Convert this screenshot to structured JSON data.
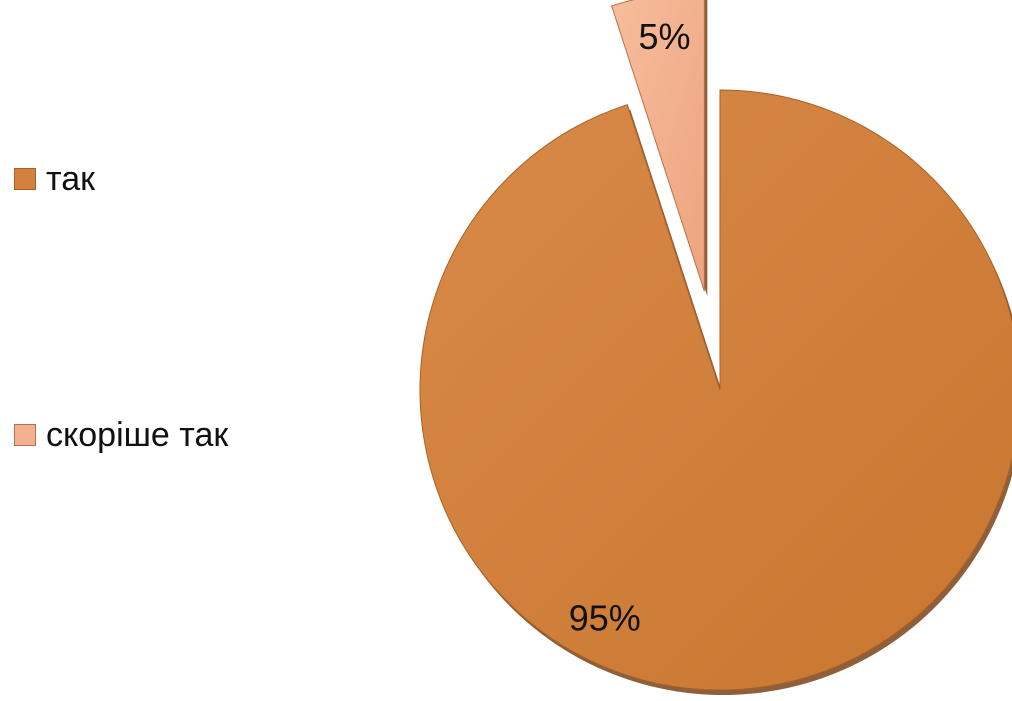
{
  "chart_data": {
    "type": "pie",
    "title": "",
    "legend_position": "left",
    "slices": [
      {
        "label": "так",
        "value": 95,
        "data_label": "95%",
        "color": "#d3813e",
        "border": "#a86127"
      },
      {
        "label": "скоріше так",
        "value": 5,
        "data_label": "5%",
        "color": "#f3b28f",
        "border": "#b8714a"
      }
    ]
  }
}
